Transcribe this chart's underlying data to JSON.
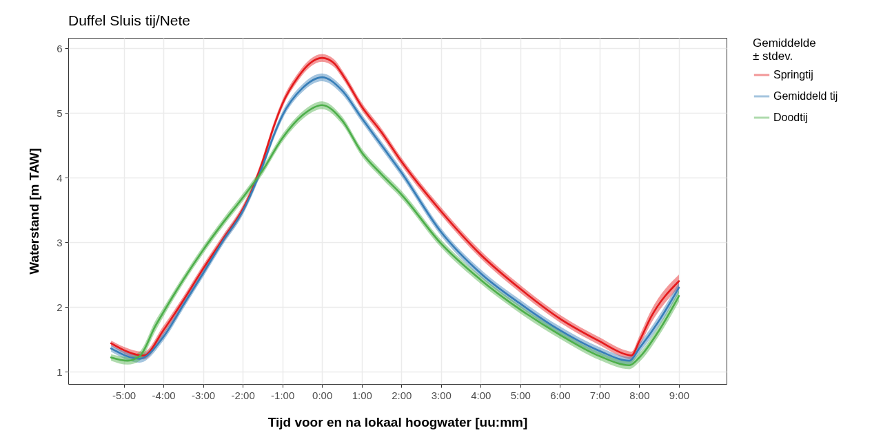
{
  "chart_data": {
    "type": "line",
    "title": "Duffel Sluis tij/Nete",
    "xlabel": "Tijd voor en na lokaal hoogwater [uu:mm]",
    "ylabel": "Waterstand [m TAW]",
    "legend_title": "Gemiddelde ± stdev.",
    "legend": "right",
    "grid": true,
    "xlim": [
      -6.4,
      10.2
    ],
    "ylim": [
      0.81,
      6.16
    ],
    "xticks": [
      {
        "value": -5,
        "label": "-5:00"
      },
      {
        "value": -4,
        "label": "-4:00"
      },
      {
        "value": -3,
        "label": "-3:00"
      },
      {
        "value": -2,
        "label": "-2:00"
      },
      {
        "value": -1,
        "label": "-1:00"
      },
      {
        "value": 0,
        "label": "0:00"
      },
      {
        "value": 1,
        "label": "1:00"
      },
      {
        "value": 2,
        "label": "2:00"
      },
      {
        "value": 3,
        "label": "3:00"
      },
      {
        "value": 4,
        "label": "4:00"
      },
      {
        "value": 5,
        "label": "5:00"
      },
      {
        "value": 6,
        "label": "6:00"
      },
      {
        "value": 7,
        "label": "7:00"
      },
      {
        "value": 8,
        "label": "8:00"
      },
      {
        "value": 9,
        "label": "9:00"
      }
    ],
    "yticks": [
      1,
      2,
      3,
      4,
      5,
      6
    ],
    "series": [
      {
        "name": "Springtij",
        "color": "#e41a1c",
        "x": [
          -5.32,
          -4.5,
          -4,
          -3.5,
          -3,
          -2.5,
          -2,
          -1.8,
          -1.5,
          -1.2,
          -1,
          -0.6,
          -0.3,
          0,
          0.3,
          0.55,
          1,
          1.5,
          2,
          3,
          4,
          5,
          6,
          7,
          7.65,
          7.8,
          8,
          8.3,
          9
        ],
        "values": [
          1.44,
          1.25,
          1.64,
          2.1,
          2.59,
          3.05,
          3.51,
          3.76,
          4.25,
          4.82,
          5.14,
          5.56,
          5.77,
          5.85,
          5.77,
          5.56,
          5.1,
          4.7,
          4.25,
          3.48,
          2.81,
          2.28,
          1.82,
          1.47,
          1.27,
          1.25,
          1.47,
          1.85,
          2.4
        ],
        "lower": [
          1.4,
          1.19,
          1.57,
          2.04,
          2.53,
          2.99,
          3.45,
          3.7,
          4.19,
          4.76,
          5.08,
          5.5,
          5.71,
          5.79,
          5.71,
          5.5,
          5.04,
          4.64,
          4.19,
          3.42,
          2.75,
          2.22,
          1.76,
          1.41,
          1.21,
          1.19,
          1.39,
          1.75,
          2.3
        ],
        "upper": [
          1.48,
          1.31,
          1.71,
          2.16,
          2.65,
          3.11,
          3.57,
          3.82,
          4.31,
          4.88,
          5.2,
          5.62,
          5.83,
          5.91,
          5.83,
          5.62,
          5.16,
          4.76,
          4.31,
          3.54,
          2.87,
          2.34,
          1.88,
          1.53,
          1.33,
          1.31,
          1.55,
          1.95,
          2.5
        ]
      },
      {
        "name": "Gemiddeld tij",
        "color": "#377eb8",
        "x": [
          -5.32,
          -4.6,
          -4,
          -3.5,
          -3,
          -2.5,
          -2,
          -1.5,
          -1.2,
          -1,
          -0.5,
          0,
          0.5,
          1,
          1.5,
          2,
          3,
          4,
          5,
          6,
          7,
          7.75,
          8,
          8.5,
          9
        ],
        "values": [
          1.36,
          1.2,
          1.54,
          2.03,
          2.52,
          3.02,
          3.48,
          4.18,
          4.68,
          4.96,
          5.38,
          5.55,
          5.35,
          4.92,
          4.5,
          4.08,
          3.16,
          2.52,
          2.05,
          1.64,
          1.32,
          1.17,
          1.36,
          1.79,
          2.3
        ],
        "lower": [
          1.31,
          1.14,
          1.48,
          1.97,
          2.46,
          2.96,
          3.42,
          4.12,
          4.62,
          4.9,
          5.32,
          5.49,
          5.29,
          4.86,
          4.44,
          4.02,
          3.1,
          2.46,
          1.99,
          1.58,
          1.26,
          1.11,
          1.29,
          1.71,
          2.22
        ],
        "upper": [
          1.41,
          1.26,
          1.6,
          2.09,
          2.58,
          3.08,
          3.54,
          4.24,
          4.74,
          5.02,
          5.44,
          5.61,
          5.41,
          4.98,
          4.56,
          4.14,
          3.22,
          2.58,
          2.11,
          1.7,
          1.38,
          1.23,
          1.43,
          1.87,
          2.38
        ]
      },
      {
        "name": "Doodtij",
        "color": "#4daf4a",
        "x": [
          -5.32,
          -4.9,
          -4.6,
          -4.2,
          -4,
          -3.5,
          -3,
          -2.5,
          -2,
          -1.5,
          -1,
          -0.5,
          0,
          0.5,
          1,
          1.5,
          2,
          3,
          4,
          5,
          6,
          7,
          7.75,
          8,
          8.5,
          9
        ],
        "values": [
          1.22,
          1.17,
          1.24,
          1.71,
          1.92,
          2.42,
          2.88,
          3.3,
          3.69,
          4.11,
          4.61,
          4.96,
          5.12,
          4.89,
          4.39,
          4.05,
          3.74,
          2.98,
          2.42,
          1.96,
          1.57,
          1.24,
          1.1,
          1.22,
          1.64,
          2.17
        ],
        "lower": [
          1.17,
          1.11,
          1.17,
          1.63,
          1.85,
          2.36,
          2.82,
          3.24,
          3.63,
          4.05,
          4.55,
          4.9,
          5.06,
          4.83,
          4.33,
          3.99,
          3.68,
          2.92,
          2.36,
          1.9,
          1.51,
          1.18,
          1.04,
          1.15,
          1.56,
          2.08
        ],
        "upper": [
          1.27,
          1.23,
          1.31,
          1.79,
          1.99,
          2.48,
          2.94,
          3.36,
          3.75,
          4.17,
          4.67,
          5.02,
          5.18,
          4.95,
          4.45,
          4.11,
          3.8,
          3.04,
          2.48,
          2.02,
          1.63,
          1.3,
          1.16,
          1.29,
          1.72,
          2.26
        ]
      }
    ]
  }
}
